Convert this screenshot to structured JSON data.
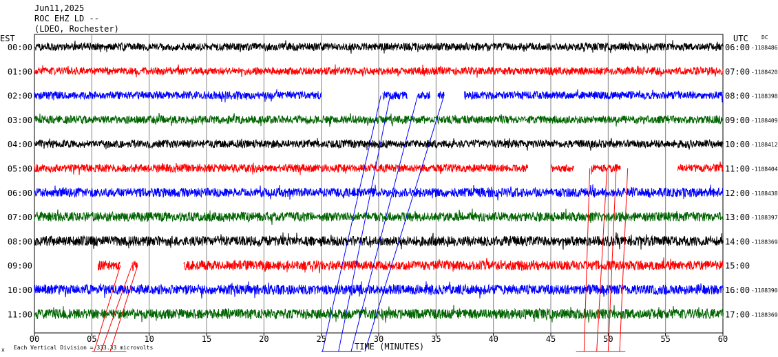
{
  "header": {
    "date": "Jun11,2025",
    "station": "ROC EHZ LD --",
    "network": "(LDEO, Rochester)"
  },
  "chart_data": {
    "type": "line",
    "left_axis_label": "EST",
    "right_axis_label": "UTC",
    "dc_label": "DC",
    "xlabel": "TIME (MINUTES)",
    "xlim": [
      0,
      60
    ],
    "x_ticks": [
      "00",
      "05",
      "10",
      "15",
      "20",
      "25",
      "30",
      "35",
      "40",
      "45",
      "50",
      "55",
      "60"
    ],
    "grid": true,
    "footer": "Each Vertical Division = 333.33 microvolts",
    "footer_mark": "x",
    "colors": [
      "#000000",
      "#ff0000",
      "#0000ff",
      "#006400"
    ],
    "rows": [
      {
        "est": "00:00",
        "utc": "06:00",
        "dc": "-1188486",
        "amplitude": 0.5,
        "gaps": []
      },
      {
        "est": "01:00",
        "utc": "07:00",
        "dc": "-1188420",
        "amplitude": 0.5,
        "gaps": []
      },
      {
        "est": "02:00",
        "utc": "08:00",
        "dc": "-1188398",
        "amplitude": 0.55,
        "gaps": [
          [
            25.0,
            30.3
          ],
          [
            32.5,
            33.4
          ],
          [
            34.5,
            35.1
          ],
          [
            35.7,
            37.4
          ]
        ]
      },
      {
        "est": "03:00",
        "utc": "09:00",
        "dc": "-1188409",
        "amplitude": 0.55,
        "gaps": []
      },
      {
        "est": "04:00",
        "utc": "10:00",
        "dc": "-1188412",
        "amplitude": 0.55,
        "gaps": []
      },
      {
        "est": "05:00",
        "utc": "11:00",
        "dc": "-1188404",
        "amplitude": 0.55,
        "gaps": [
          [
            43.0,
            45.0
          ],
          [
            47.0,
            48.5
          ],
          [
            51.1,
            56.0
          ]
        ]
      },
      {
        "est": "06:00",
        "utc": "12:00",
        "dc": "-1188438",
        "amplitude": 0.75,
        "gaps": []
      },
      {
        "est": "07:00",
        "utc": "13:00",
        "dc": "-1188397",
        "amplitude": 0.8,
        "gaps": []
      },
      {
        "est": "08:00",
        "utc": "14:00",
        "dc": "-1188369",
        "amplitude": 0.9,
        "gaps": []
      },
      {
        "est": "09:00",
        "utc": "15:00",
        "dc": "",
        "amplitude": 0.85,
        "gaps": [
          [
            0,
            5.5
          ],
          [
            7.5,
            8.5
          ],
          [
            9.0,
            13.0
          ]
        ]
      },
      {
        "est": "10:00",
        "utc": "16:00",
        "dc": "-1188390",
        "amplitude": 0.9,
        "gaps": []
      },
      {
        "est": "11:00",
        "utc": "17:00",
        "dc": "-1188369",
        "amplitude": 0.95,
        "gaps": []
      }
    ],
    "slants": [
      {
        "color": "#0000ff",
        "x0": 25.1,
        "x1": 30.2,
        "from_row": 2,
        "to_row": 13.3
      },
      {
        "color": "#0000ff",
        "x0": 26.5,
        "x1": 31.0,
        "from_row": 2,
        "to_row": 13.3
      },
      {
        "color": "#0000ff",
        "x0": 27.6,
        "x1": 33.4,
        "from_row": 2,
        "to_row": 13.3
      },
      {
        "color": "#0000ff",
        "x0": 28.8,
        "x1": 35.7,
        "from_row": 2,
        "to_row": 13.3
      },
      {
        "color": "#ff0000",
        "x0": 5.2,
        "x1": 7.5,
        "from_row": 9,
        "to_row": 13.3
      },
      {
        "color": "#ff0000",
        "x0": 5.8,
        "x1": 8.5,
        "from_row": 9,
        "to_row": 13.3
      },
      {
        "color": "#ff0000",
        "x0": 6.6,
        "x1": 9.0,
        "from_row": 9,
        "to_row": 13.3
      },
      {
        "color": "#ff0000",
        "x0": 47.9,
        "x1": 48.4,
        "from_row": 5,
        "to_row": 13.3
      },
      {
        "color": "#ff0000",
        "x0": 49.0,
        "x1": 49.9,
        "from_row": 5,
        "to_row": 13.3
      },
      {
        "color": "#ff0000",
        "x0": 50.0,
        "x1": 50.7,
        "from_row": 5,
        "to_row": 13.3
      },
      {
        "color": "#ff0000",
        "x0": 51.0,
        "x1": 51.7,
        "from_row": 5,
        "to_row": 13.3
      }
    ]
  }
}
